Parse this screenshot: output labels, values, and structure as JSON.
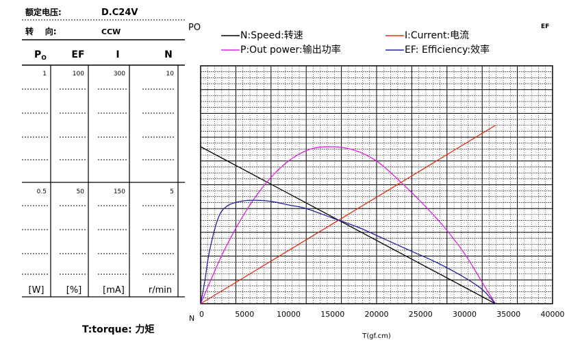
{
  "header": {
    "rated_voltage_label": "额定电压:",
    "rated_voltage_value": "D.C24V",
    "rotation_label": "转    向:",
    "rotation_value": "CCW"
  },
  "left_table": {
    "columns": [
      {
        "key": "P",
        "header": "P",
        "header_sub": "O",
        "top": "1",
        "mid": "0.5",
        "unit": "[W]"
      },
      {
        "key": "EF",
        "header": "EF",
        "header_sub": "",
        "top": "100",
        "mid": "50",
        "unit": "[%]"
      },
      {
        "key": "I",
        "header": "I",
        "header_sub": "",
        "top": "300",
        "mid": "150",
        "unit": "[mA]"
      },
      {
        "key": "N",
        "header": "N",
        "header_sub": "",
        "top": "10",
        "mid": "5",
        "unit": "r/min"
      }
    ]
  },
  "torque_label": "T:torque: 力矩",
  "chart_data": {
    "type": "line",
    "corner_left": "PO",
    "corner_right": "EF",
    "n_marker": "N",
    "xlabel": "T(gf.cm)",
    "xlim": [
      0,
      40000
    ],
    "xticks": [
      "0",
      "5000",
      "10000",
      "15000",
      "20000",
      "25000",
      "30000",
      "35000",
      "40000"
    ],
    "legend": [
      {
        "label": "N:Speed:转速",
        "color": "#000000"
      },
      {
        "label": "I:Current:电流",
        "color": "#e03010"
      },
      {
        "label": "P:Out power:输出功率",
        "color": "#e020e0"
      },
      {
        "label": "EF: Efficiency:效率",
        "color": "#2020a0"
      }
    ],
    "series": [
      {
        "name": "N:Speed:转速",
        "color": "#000000",
        "x": [
          0,
          33500
        ],
        "y": [
          6.6,
          0
        ]
      },
      {
        "name": "I:Current:电流",
        "color": "#e03010",
        "x": [
          0,
          33500
        ],
        "y": [
          0,
          225
        ]
      },
      {
        "name": "P:Out power:输出功率",
        "color": "#e020e0",
        "x": [
          0,
          2500,
          5000,
          7500,
          10000,
          12500,
          15000,
          17500,
          20000,
          22500,
          25000,
          27500,
          30000,
          32500,
          33500
        ],
        "y": [
          0,
          0.21,
          0.38,
          0.51,
          0.6,
          0.65,
          0.66,
          0.645,
          0.6,
          0.52,
          0.43,
          0.33,
          0.21,
          0.06,
          0
        ]
      },
      {
        "name": "EF: Efficiency:效率",
        "color": "#2020a0",
        "x": [
          0,
          500,
          1000,
          2000,
          3000,
          4500,
          6000,
          8000,
          10000,
          12000,
          15000,
          18000,
          21000,
          24000,
          27000,
          30000,
          32000,
          33500
        ],
        "y": [
          0,
          10,
          22,
          36,
          41,
          43,
          43.5,
          43,
          41.5,
          40,
          36,
          32,
          27,
          22,
          17,
          11,
          6,
          0
        ]
      }
    ]
  }
}
